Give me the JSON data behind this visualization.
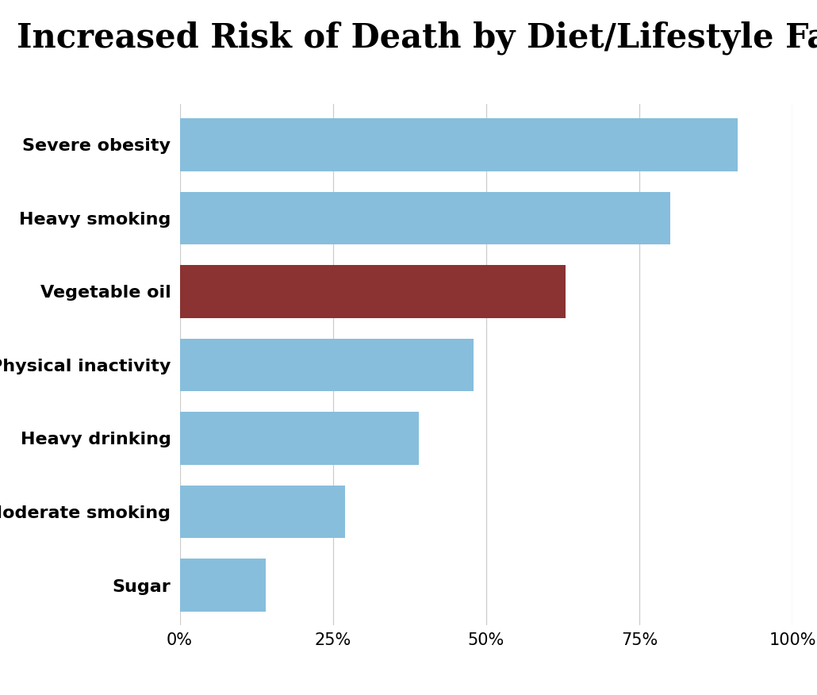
{
  "title": "Increased Risk of Death by Diet/Lifestyle Factor",
  "categories": [
    "Severe obesity",
    "Heavy smoking",
    "Vegetable oil",
    "Physical inactivity",
    "Heavy drinking",
    "Moderate smoking",
    "Sugar"
  ],
  "values": [
    91,
    80,
    63,
    48,
    39,
    27,
    14
  ],
  "bar_colors": [
    "#87BEDC",
    "#87BEDC",
    "#8B3232",
    "#87BEDC",
    "#87BEDC",
    "#87BEDC",
    "#87BEDC"
  ],
  "xlim": [
    0,
    100
  ],
  "xtick_labels": [
    "0%",
    "25%",
    "50%",
    "75%",
    "100%"
  ],
  "xtick_values": [
    0,
    25,
    50,
    75,
    100
  ],
  "background_color": "#FFFFFF",
  "title_fontsize": 30,
  "label_fontsize": 16,
  "tick_fontsize": 15,
  "bar_height": 0.72,
  "title_font_family": "serif"
}
